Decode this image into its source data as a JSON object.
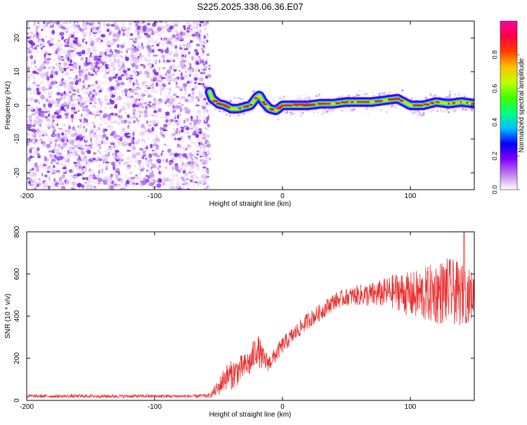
{
  "title": "S225.2025.338.06.36.E07",
  "chart_data": [
    {
      "type": "heatmap",
      "title": "S225.2025.338.06.36.E07",
      "xlabel": "Height of straight line (km)",
      "ylabel": "Frequency (Hz)",
      "xlim": [
        -200,
        150
      ],
      "ylim": [
        -25,
        25
      ],
      "x_ticks": [
        "-200",
        "-100",
        "0",
        "100"
      ],
      "y_ticks": [
        "-20",
        "-10",
        "0",
        "10",
        "20"
      ],
      "noise_region": {
        "x_start": -200,
        "x_end": -57
      },
      "signal_track": {
        "x": [
          -57,
          -55,
          -50,
          -45,
          -40,
          -35,
          -30,
          -25,
          -20,
          -18,
          -15,
          -10,
          -5,
          0,
          10,
          20,
          30,
          40,
          50,
          60,
          70,
          80,
          90,
          95,
          100,
          110,
          120,
          130,
          140,
          150
        ],
        "y": [
          4,
          2,
          0.5,
          0,
          -1,
          -1,
          -0.5,
          0,
          2.5,
          3,
          1,
          -1,
          -1.5,
          0,
          0,
          0,
          0.5,
          0.5,
          1,
          1,
          1,
          1.5,
          2,
          1,
          0,
          0,
          1,
          0.5,
          1,
          0.5
        ]
      },
      "colorbar": {
        "label": "Normalized spectral amplitude",
        "range": [
          0,
          1
        ],
        "ticks": [
          "0.0",
          "0.2",
          "0.4",
          "0.6",
          "0.8"
        ],
        "colors": [
          "#ffffff",
          "#c080f0",
          "#8000ff",
          "#0000ff",
          "#00c0ff",
          "#00ff80",
          "#40ff00",
          "#c0ff00",
          "#ffc000",
          "#ff4000",
          "#ff0040",
          "#ff00a0"
        ]
      }
    },
    {
      "type": "line",
      "xlabel": "Height of straight line (km)",
      "ylabel": "SNR (10 * v/v)",
      "xlim": [
        -200,
        150
      ],
      "ylim": [
        0,
        800
      ],
      "x_ticks": [
        "-200",
        "-100",
        "0",
        "100"
      ],
      "y_ticks": [
        "0",
        "200",
        "400",
        "600",
        "800"
      ],
      "color": "#e83030",
      "x": [
        -200,
        -150,
        -100,
        -70,
        -57,
        -50,
        -45,
        -40,
        -35,
        -30,
        -25,
        -20,
        -15,
        -10,
        -5,
        0,
        10,
        20,
        30,
        40,
        50,
        60,
        70,
        80,
        90,
        100,
        110,
        120,
        130,
        140,
        150
      ],
      "y": [
        20,
        20,
        20,
        20,
        22,
        60,
        110,
        120,
        140,
        160,
        180,
        250,
        190,
        180,
        220,
        260,
        320,
        380,
        420,
        470,
        490,
        500,
        500,
        510,
        520,
        500,
        500,
        510,
        520,
        500,
        500
      ],
      "noise_amplitude": [
        8,
        8,
        8,
        8,
        10,
        40,
        60,
        70,
        70,
        60,
        70,
        80,
        60,
        40,
        40,
        40,
        40,
        40,
        40,
        40,
        40,
        50,
        60,
        70,
        90,
        110,
        130,
        150,
        160,
        150,
        110
      ],
      "peak": {
        "x": 142,
        "y": 800
      }
    }
  ]
}
